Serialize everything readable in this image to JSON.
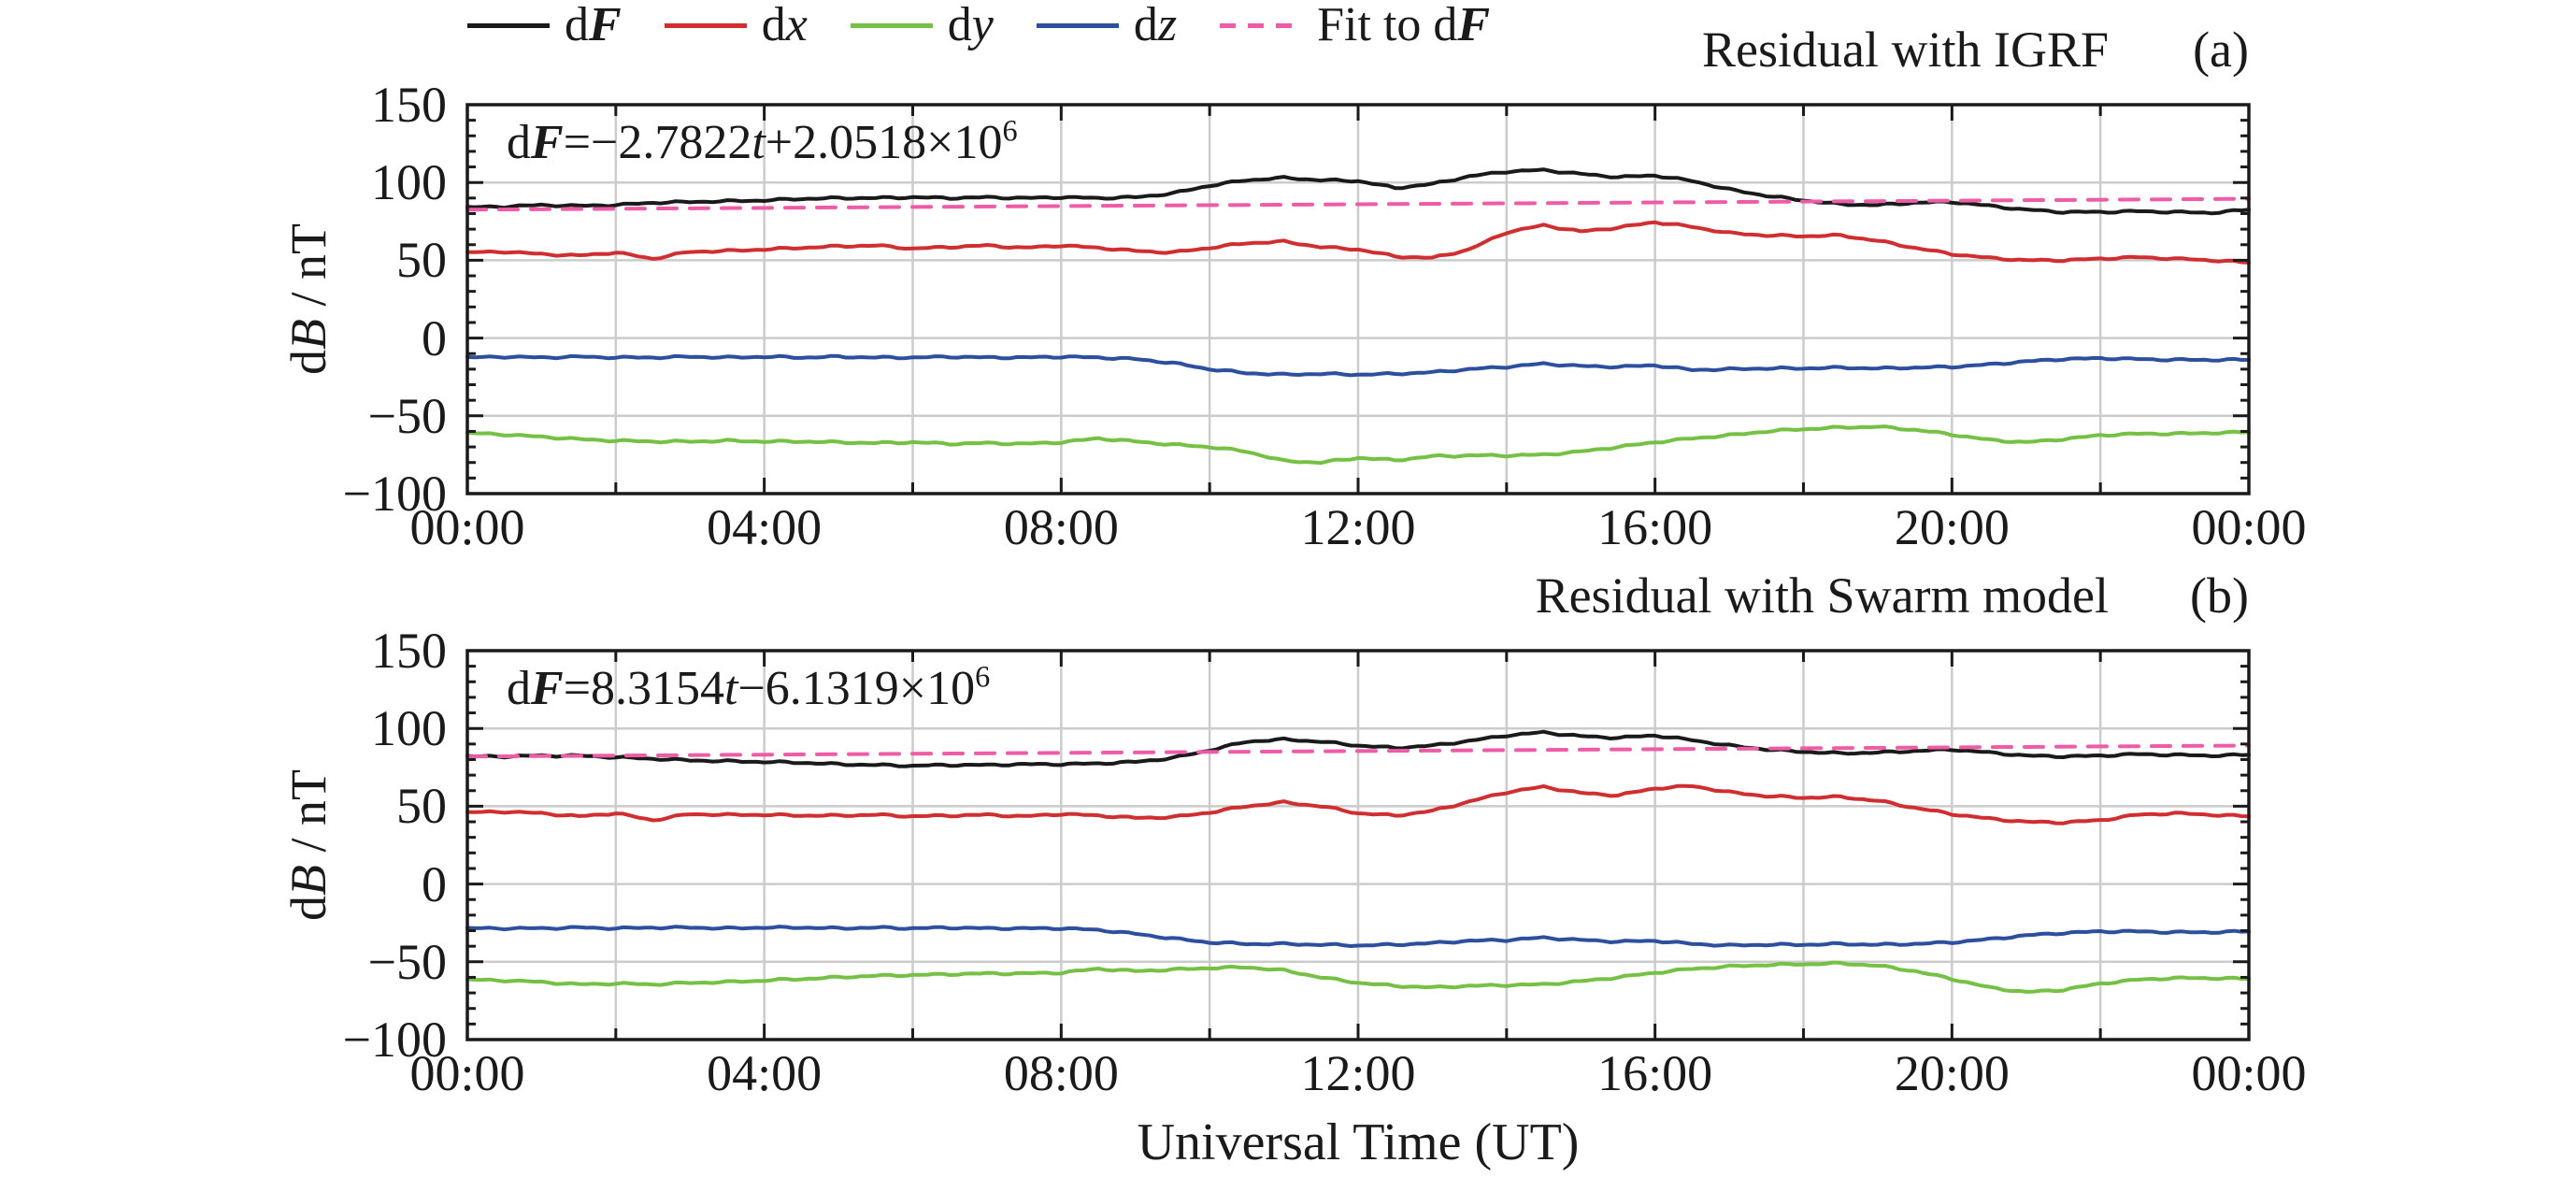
{
  "colors": {
    "black": "#1a1a1a",
    "red": "#cf2f30",
    "green": "#76c045",
    "blue": "#2e4f9e",
    "pink": "#ee5ba6",
    "grid": "#cccccc",
    "text": "#1a1a1a"
  },
  "legend": {
    "items": [
      {
        "label": "dF",
        "prefix": "d",
        "var": "F",
        "bold": true,
        "color": "black",
        "style": "solid"
      },
      {
        "label": "dx",
        "prefix": "d",
        "var": "x",
        "bold": false,
        "color": "red",
        "style": "solid"
      },
      {
        "label": "dy",
        "prefix": "d",
        "var": "y",
        "bold": false,
        "color": "green",
        "style": "solid"
      },
      {
        "label": "dz",
        "prefix": "d",
        "var": "z",
        "bold": false,
        "color": "blue",
        "style": "solid"
      },
      {
        "label": "Fit to dF",
        "prefix": "Fit to d",
        "var": "F",
        "bold": true,
        "color": "pink",
        "style": "dashed"
      }
    ]
  },
  "panels": [
    {
      "title": "Residual with IGRF",
      "tag": "(a)",
      "eq": {
        "d": "d",
        "F": "F",
        "pre": "=−2.7822",
        "t": "t",
        "post": "+2.0518×10",
        "exp": "6"
      }
    },
    {
      "title": "Residual with Swarm model",
      "tag": "(b)",
      "eq": {
        "d": "d",
        "F": "F",
        "pre": "=8.3154",
        "t": "t",
        "post": "−6.1319×10",
        "exp": "6"
      }
    }
  ],
  "axis": {
    "ylabel": {
      "d": "d",
      "B": "B",
      "rest": " / nT"
    },
    "xlabel": "Universal Time (UT)"
  },
  "chart_data": [
    {
      "type": "line",
      "title": "Residual with IGRF",
      "panel_tag": "(a)",
      "fit_annotation": "dF=−2.7822t+2.0518×10⁶",
      "x_unit": "hours (UT)",
      "x_range": [
        0,
        24
      ],
      "x_step_hours": 0.5,
      "ylim": [
        -100,
        150
      ],
      "ylabel": "dB / nT",
      "yticks": [
        150,
        100,
        50,
        0,
        -50,
        -100
      ],
      "yticklabels": [
        "150",
        "100",
        "50",
        "0",
        "−50",
        "−100"
      ],
      "xticks": [
        0,
        4,
        8,
        12,
        16,
        20,
        24
      ],
      "xticklabels": [
        "00:00",
        "04:00",
        "08:00",
        "12:00",
        "16:00",
        "20:00",
        "00:00"
      ],
      "grid": {
        "x": [
          2,
          4,
          6,
          8,
          10,
          12,
          14,
          16,
          18,
          20,
          22
        ],
        "y": [
          100,
          50,
          0,
          -50
        ]
      },
      "series": [
        {
          "name": "dy",
          "color": "green",
          "values": [
            -61,
            -62,
            -63.5,
            -65,
            -66,
            -66.5,
            -66.5,
            -66,
            -66.5,
            -66.5,
            -67,
            -67.5,
            -67,
            -68,
            -67.5,
            -68,
            -67,
            -64.5,
            -66.5,
            -68.5,
            -70,
            -73,
            -79,
            -80,
            -77,
            -78.5,
            -76,
            -75.5,
            -75.5,
            -75,
            -73,
            -70,
            -67,
            -64.5,
            -62.5,
            -60,
            -58.5,
            -57.5,
            -57,
            -59,
            -62,
            -65.5,
            -67,
            -65,
            -62.5,
            -61.5,
            -61.5,
            -61,
            -60.5
          ]
        },
        {
          "name": "dz",
          "color": "blue",
          "values": [
            -12.5,
            -12,
            -12.5,
            -12,
            -12.5,
            -12.5,
            -12,
            -12.5,
            -12,
            -12.5,
            -12,
            -12.5,
            -12.5,
            -12,
            -12.5,
            -12.5,
            -12,
            -12.5,
            -13.5,
            -16,
            -20,
            -22.5,
            -23.5,
            -23,
            -23.5,
            -23,
            -22,
            -20,
            -18.5,
            -16.5,
            -18,
            -18.5,
            -17.5,
            -20.5,
            -20,
            -19.5,
            -19.5,
            -19,
            -19.5,
            -19,
            -18.5,
            -17,
            -15,
            -13.5,
            -13,
            -13.5,
            -14,
            -14,
            -14
          ]
        },
        {
          "name": "dx",
          "color": "red",
          "values": [
            55,
            55.5,
            54,
            53,
            55,
            51,
            55.5,
            56,
            57,
            58,
            59,
            59.5,
            57.5,
            58.5,
            59.5,
            58,
            59.5,
            58,
            56,
            55,
            58,
            61,
            62,
            58.5,
            57,
            52.5,
            51.5,
            57,
            68,
            72.5,
            68.5,
            71,
            74.5,
            71.5,
            67.5,
            66,
            65.5,
            66,
            62.5,
            58,
            54,
            51.5,
            50,
            50,
            51,
            52,
            51,
            50,
            48.5
          ]
        },
        {
          "name": "dF",
          "color": "black",
          "values": [
            84,
            84.5,
            85.5,
            85,
            85.5,
            87,
            87.5,
            88,
            88.5,
            89.5,
            90,
            90,
            90.5,
            90,
            90.5,
            90,
            90.5,
            90,
            90.5,
            93,
            98,
            101.5,
            103,
            101.5,
            101,
            96.5,
            99,
            104,
            107,
            108,
            105.5,
            103.5,
            104.5,
            101,
            95.5,
            91.5,
            88.5,
            86,
            85.5,
            87,
            87.5,
            85,
            82.5,
            81,
            81,
            81.5,
            81,
            80.5,
            82.5
          ]
        },
        {
          "name": "Fit to dF",
          "color": "pink",
          "dashed": true,
          "fit": true,
          "values": [
            82.5,
            89.5
          ]
        }
      ]
    },
    {
      "type": "line",
      "title": "Residual with Swarm model",
      "panel_tag": "(b)",
      "fit_annotation": "dF=8.3154t−6.1319×10⁶",
      "x_unit": "hours (UT)",
      "x_range": [
        0,
        24
      ],
      "x_step_hours": 0.5,
      "ylim": [
        -100,
        150
      ],
      "ylabel": "dB / nT",
      "yticks": [
        150,
        100,
        50,
        0,
        -50,
        -100
      ],
      "yticklabels": [
        "150",
        "100",
        "50",
        "0",
        "−50",
        "−100"
      ],
      "xticks": [
        0,
        4,
        8,
        12,
        16,
        20,
        24
      ],
      "xticklabels": [
        "00:00",
        "04:00",
        "08:00",
        "12:00",
        "16:00",
        "20:00",
        "00:00"
      ],
      "grid": {
        "x": [
          2,
          4,
          6,
          8,
          10,
          12,
          14,
          16,
          18,
          20,
          22
        ],
        "y": [
          100,
          50,
          0,
          -50
        ]
      },
      "series": [
        {
          "name": "dy",
          "color": "green",
          "values": [
            -61.5,
            -62,
            -63,
            -64.5,
            -64,
            -64.5,
            -63.5,
            -63,
            -62,
            -61,
            -60,
            -59,
            -58.5,
            -58,
            -57.5,
            -57.5,
            -57,
            -54.5,
            -56,
            -55,
            -54,
            -53.5,
            -55.5,
            -60,
            -63.5,
            -65.5,
            -66.5,
            -65.5,
            -65,
            -64.5,
            -62.5,
            -60,
            -57,
            -54.5,
            -53,
            -52,
            -51.5,
            -51,
            -52.5,
            -56,
            -61,
            -66.5,
            -69.5,
            -68,
            -64,
            -61.5,
            -60.5,
            -60.5,
            -61
          ]
        },
        {
          "name": "dz",
          "color": "blue",
          "values": [
            -28.5,
            -28.5,
            -28.5,
            -28,
            -28.5,
            -28,
            -28,
            -28.5,
            -28,
            -28,
            -28.5,
            -28,
            -28.5,
            -28,
            -28.5,
            -28.5,
            -28.5,
            -29.5,
            -32,
            -35,
            -37.5,
            -38.5,
            -38.5,
            -39,
            -39.5,
            -39,
            -38,
            -36.5,
            -36,
            -34.5,
            -36,
            -37,
            -36.5,
            -38.5,
            -39.5,
            -39,
            -39,
            -38.5,
            -39,
            -38.5,
            -37.5,
            -35.5,
            -33,
            -31.5,
            -30.5,
            -30.5,
            -31,
            -31,
            -30.5
          ]
        },
        {
          "name": "dx",
          "color": "red",
          "values": [
            46,
            46.5,
            45.5,
            43.5,
            45.5,
            41,
            45,
            44.5,
            44.5,
            44,
            44,
            44.5,
            43.5,
            44,
            44.5,
            43.5,
            45,
            44,
            42.5,
            43,
            46,
            50,
            52.5,
            50,
            45.5,
            44,
            47,
            53,
            59,
            62.5,
            58.5,
            57,
            61.5,
            63,
            59,
            56.5,
            55.5,
            56,
            53.5,
            49,
            45,
            42,
            40,
            39.5,
            41,
            44.5,
            45.5,
            44.5,
            43.5
          ]
        },
        {
          "name": "dF",
          "color": "black",
          "values": [
            82,
            82,
            82.5,
            82.5,
            81.5,
            80.5,
            79.5,
            79,
            78.5,
            78,
            77,
            76.5,
            76,
            76.5,
            76.5,
            77,
            77,
            77.5,
            78.5,
            81,
            86,
            91.5,
            93,
            91.5,
            89,
            87.5,
            89,
            92,
            95.5,
            97.5,
            95,
            94,
            95.5,
            92.5,
            89,
            86.5,
            85,
            84,
            84.5,
            85.5,
            86.5,
            84.5,
            82.5,
            82,
            82.5,
            83.5,
            83,
            82.5,
            83
          ]
        },
        {
          "name": "Fit to dF",
          "color": "pink",
          "dashed": true,
          "fit": true,
          "values": [
            82,
            89
          ]
        }
      ]
    }
  ]
}
